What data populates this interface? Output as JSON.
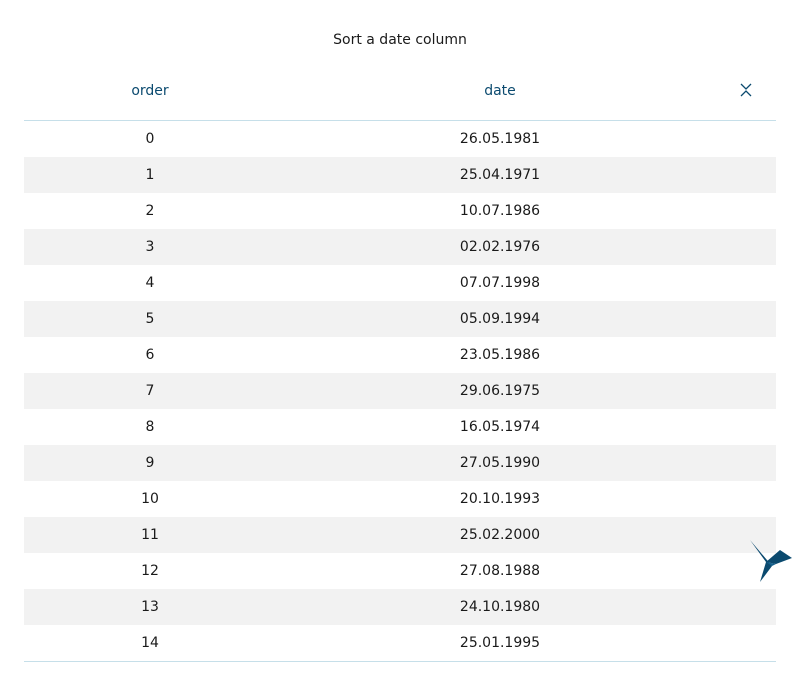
{
  "title": "Sort a date column",
  "columns": {
    "order_label": "order",
    "date_label": "date"
  },
  "sort_icon": "sort-toggle-icon",
  "logo_icon": "hummingbird-logo-icon",
  "accent_color": "#0b4a6f",
  "rows": [
    {
      "order": "0",
      "date": "26.05.1981"
    },
    {
      "order": "1",
      "date": "25.04.1971"
    },
    {
      "order": "2",
      "date": "10.07.1986"
    },
    {
      "order": "3",
      "date": "02.02.1976"
    },
    {
      "order": "4",
      "date": "07.07.1998"
    },
    {
      "order": "5",
      "date": "05.09.1994"
    },
    {
      "order": "6",
      "date": "23.05.1986"
    },
    {
      "order": "7",
      "date": "29.06.1975"
    },
    {
      "order": "8",
      "date": "16.05.1974"
    },
    {
      "order": "9",
      "date": "27.05.1990"
    },
    {
      "order": "10",
      "date": "20.10.1993"
    },
    {
      "order": "11",
      "date": "25.02.2000"
    },
    {
      "order": "12",
      "date": "27.08.1988"
    },
    {
      "order": "13",
      "date": "24.10.1980"
    },
    {
      "order": "14",
      "date": "25.01.1995"
    }
  ]
}
